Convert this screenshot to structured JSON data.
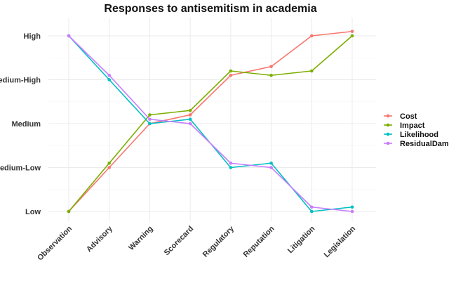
{
  "chart_data": {
    "type": "line",
    "title": "Responses to antisemitism in academia",
    "xlabel": "",
    "ylabel": "",
    "categories": [
      "Observation",
      "Advisory",
      "Warning",
      "Scorecard",
      "Regulatory",
      "Reputation",
      "Litigation",
      "Legislation"
    ],
    "y_scale": {
      "min": 1,
      "max": 5
    },
    "y_ticks": [
      {
        "value": 1,
        "label": "Low"
      },
      {
        "value": 2,
        "label": "Medium-Low"
      },
      {
        "value": 3,
        "label": "Medium"
      },
      {
        "value": 4,
        "label": "Medium-High"
      },
      {
        "value": 5,
        "label": "High"
      }
    ],
    "grid": true,
    "legend_position": "right",
    "series": [
      {
        "name": "Cost",
        "color": "#F8766D",
        "values": [
          1,
          2.0,
          3.0,
          3.2,
          4.1,
          4.3,
          5.0,
          5.1
        ]
      },
      {
        "name": "Impact",
        "color": "#7CAE00",
        "values": [
          1,
          2.1,
          3.2,
          3.3,
          4.2,
          4.1,
          4.2,
          5.0
        ]
      },
      {
        "name": "Likelihood",
        "color": "#00BFC4",
        "values": [
          5,
          4.0,
          3.0,
          3.1,
          2.0,
          2.1,
          1.0,
          1.1
        ]
      },
      {
        "name": "ResidualDamage",
        "color": "#C77CFF",
        "values": [
          5,
          4.1,
          3.1,
          3.0,
          2.1,
          2.0,
          1.1,
          1.0
        ]
      }
    ]
  }
}
